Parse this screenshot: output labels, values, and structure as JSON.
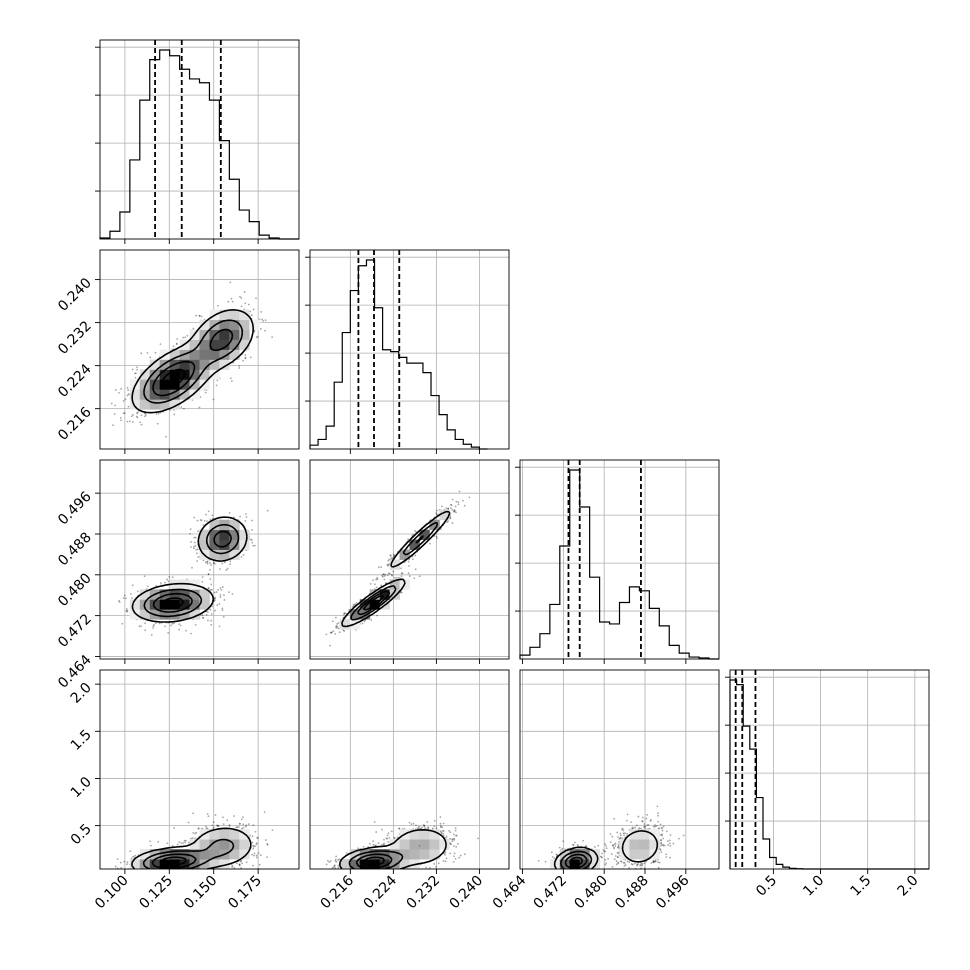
{
  "chart_data": {
    "type": "corner",
    "grid": true,
    "parameters": [
      {
        "range": [
          0.086,
          0.198
        ],
        "ticks": [
          0.1,
          0.125,
          0.15,
          0.175
        ],
        "tick_labels": [
          "0.100",
          "0.125",
          "0.150",
          "0.175"
        ]
      },
      {
        "range": [
          0.2085,
          0.2455
        ],
        "ticks": [
          0.216,
          0.224,
          0.232,
          0.24
        ],
        "tick_labels": [
          "0.216",
          "0.224",
          "0.232",
          "0.240"
        ]
      },
      {
        "range": [
          0.4635,
          0.5025
        ],
        "ticks": [
          0.464,
          0.472,
          0.48,
          0.488,
          0.496
        ],
        "tick_labels": [
          "0.464",
          "0.472",
          "0.480",
          "0.488",
          "0.496"
        ]
      },
      {
        "range": [
          0.04,
          2.15
        ],
        "ticks": [
          0.5,
          1.0,
          1.5,
          2.0
        ],
        "tick_labels": [
          "0.5",
          "1.0",
          "1.5",
          "2.0"
        ]
      }
    ],
    "histograms": [
      {
        "param": 0,
        "bin_edges": [
          0.086,
          0.0916,
          0.0972,
          0.1028,
          0.1084,
          0.114,
          0.1196,
          0.1252,
          0.1308,
          0.1364,
          0.142,
          0.1476,
          0.1532,
          0.1588,
          0.1644,
          0.17,
          0.1756,
          0.1812,
          0.1868,
          0.1924,
          0.198
        ],
        "counts": [
          0.005,
          0.04,
          0.14,
          0.41,
          0.72,
          0.93,
          0.98,
          0.95,
          0.88,
          0.83,
          0.81,
          0.72,
          0.51,
          0.31,
          0.15,
          0.09,
          0.02,
          0.005,
          0,
          0
        ],
        "quantiles": [
          0.117,
          0.132,
          0.154
        ]
      },
      {
        "param": 1,
        "bin_edges": [
          0.2085,
          0.21,
          0.2115,
          0.213,
          0.2145,
          0.216,
          0.2175,
          0.219,
          0.2205,
          0.222,
          0.2235,
          0.225,
          0.2265,
          0.228,
          0.2295,
          0.231,
          0.2325,
          0.234,
          0.2355,
          0.237,
          0.2385,
          0.24,
          0.2415
        ],
        "counts": [
          0.02,
          0.05,
          0.12,
          0.35,
          0.61,
          0.83,
          0.96,
          0.99,
          0.74,
          0.52,
          0.51,
          0.48,
          0.45,
          0.45,
          0.4,
          0.28,
          0.18,
          0.1,
          0.05,
          0.025,
          0.01,
          0
        ],
        "quantiles": [
          0.2175,
          0.2204,
          0.2251
        ]
      },
      {
        "param": 2,
        "bin_edges": [
          0.4635,
          0.46545,
          0.4674,
          0.46935,
          0.4713,
          0.47325,
          0.4752,
          0.47715,
          0.4791,
          0.48105,
          0.483,
          0.48495,
          0.4869,
          0.48885,
          0.4908,
          0.49275,
          0.4947,
          0.49665,
          0.4986,
          0.50055,
          0.5025
        ],
        "counts": [
          0.02,
          0.06,
          0.13,
          0.28,
          0.58,
          0.97,
          0.78,
          0.42,
          0.19,
          0.18,
          0.29,
          0.37,
          0.35,
          0.26,
          0.17,
          0.07,
          0.03,
          0.01,
          0.005,
          0
        ],
        "quantiles": [
          0.473,
          0.4752,
          0.4872
        ]
      },
      {
        "param": 3,
        "bin_edges": [
          0.04,
          0.11,
          0.18,
          0.25,
          0.32,
          0.39,
          0.46,
          0.53,
          0.6,
          0.67,
          0.74,
          0.81,
          0.88,
          0.95,
          1.02,
          1.09,
          1.16,
          1.23,
          1.3,
          1.37,
          1.44,
          1.51,
          1.58,
          1.65,
          1.72,
          1.79,
          1.86,
          1.93,
          2.0,
          2.07,
          2.15
        ],
        "counts": [
          0.82,
          0.8,
          0.62,
          0.52,
          0.31,
          0.13,
          0.05,
          0.02,
          0.008,
          0.003,
          0.001,
          0,
          0,
          0,
          0,
          0,
          0,
          0,
          0,
          0,
          0,
          0,
          0,
          0,
          0,
          0,
          0,
          0,
          0,
          0
        ],
        "quantiles": [
          0.1,
          0.17,
          0.31
        ]
      }
    ],
    "scatter_panels": [
      {
        "x_param": 0,
        "y_param": 1,
        "modes": [
          {
            "mx": 0.127,
            "my": 0.2215,
            "sx": 0.011,
            "sy": 0.003,
            "rho": 0.55,
            "w": 0.62
          },
          {
            "mx": 0.155,
            "my": 0.229,
            "sx": 0.009,
            "sy": 0.0028,
            "rho": 0.35,
            "w": 0.38
          }
        ]
      },
      {
        "x_param": 0,
        "y_param": 2,
        "modes": [
          {
            "mx": 0.127,
            "my": 0.4745,
            "sx": 0.011,
            "sy": 0.0018,
            "rho": 0.2,
            "w": 0.62
          },
          {
            "mx": 0.155,
            "my": 0.487,
            "sx": 0.007,
            "sy": 0.0022,
            "rho": 0.1,
            "w": 0.38
          }
        ]
      },
      {
        "x_param": 1,
        "y_param": 2,
        "modes": [
          {
            "mx": 0.2203,
            "my": 0.4745,
            "sx": 0.0028,
            "sy": 0.0022,
            "rho": 0.9,
            "w": 0.62
          },
          {
            "mx": 0.229,
            "my": 0.487,
            "sx": 0.003,
            "sy": 0.003,
            "rho": 0.95,
            "w": 0.38
          }
        ]
      },
      {
        "x_param": 0,
        "y_param": 3,
        "modes": [
          {
            "mx": 0.127,
            "my": 0.12,
            "sx": 0.011,
            "sy": 0.07,
            "rho": 0.2,
            "w": 0.62
          },
          {
            "mx": 0.155,
            "my": 0.28,
            "sx": 0.01,
            "sy": 0.12,
            "rho": 0.1,
            "w": 0.38
          }
        ]
      },
      {
        "x_param": 1,
        "y_param": 3,
        "modes": [
          {
            "mx": 0.2203,
            "my": 0.12,
            "sx": 0.003,
            "sy": 0.07,
            "rho": 0.2,
            "w": 0.62
          },
          {
            "mx": 0.229,
            "my": 0.28,
            "sx": 0.0033,
            "sy": 0.12,
            "rho": 0.1,
            "w": 0.38
          }
        ]
      },
      {
        "x_param": 2,
        "y_param": 3,
        "modes": [
          {
            "mx": 0.4745,
            "my": 0.12,
            "sx": 0.002,
            "sy": 0.07,
            "rho": 0.2,
            "w": 0.62
          },
          {
            "mx": 0.487,
            "my": 0.28,
            "sx": 0.0025,
            "sy": 0.12,
            "rho": 0.1,
            "w": 0.38
          }
        ]
      }
    ]
  }
}
